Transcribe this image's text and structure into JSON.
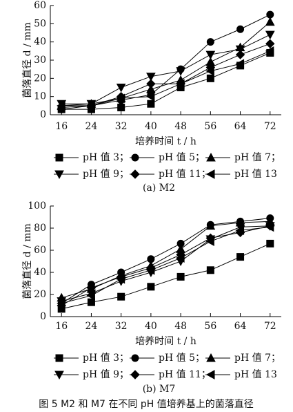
{
  "chart_data": [
    {
      "type": "line",
      "subtitle": "(a)  M2",
      "x_label": "培养时间 t / h",
      "y_label": "菌落直径 d / mm",
      "x": [
        16,
        24,
        32,
        40,
        48,
        56,
        64,
        72
      ],
      "xlim": [
        13,
        75
      ],
      "xticks": [
        16,
        24,
        32,
        40,
        48,
        56,
        64,
        72
      ],
      "ylim": [
        0,
        60
      ],
      "yticks": [
        0,
        10,
        20,
        30,
        40,
        50,
        60
      ],
      "series": [
        {
          "name": "pH 值 3；",
          "color": "#000000",
          "marker": "square",
          "values": [
            3,
            3,
            4,
            6,
            15,
            20,
            27,
            34
          ]
        },
        {
          "name": "pH 值 5；",
          "color": "#000000",
          "marker": "circle",
          "values": [
            4,
            5,
            8,
            11,
            25,
            40,
            47,
            55
          ]
        },
        {
          "name": "pH 值 7；",
          "color": "#000000",
          "marker": "triangle-up",
          "values": [
            5,
            6,
            9,
            14,
            19,
            29,
            37,
            51
          ]
        },
        {
          "name": "pH 值 9；",
          "color": "#000000",
          "marker": "triangle-down",
          "values": [
            6,
            6,
            15,
            21,
            24,
            33,
            36,
            44
          ]
        },
        {
          "name": "pH 值 11；",
          "color": "#000000",
          "marker": "diamond",
          "values": [
            3,
            5,
            10,
            17,
            17,
            26,
            33,
            39
          ]
        },
        {
          "name": "pH 值 13",
          "color": "#000000",
          "marker": "triangle-left",
          "values": [
            5,
            5,
            9,
            10,
            17,
            24,
            28,
            35
          ]
        }
      ]
    },
    {
      "type": "line",
      "subtitle": "(b)  M7",
      "x_label": "培养时间 t / h",
      "y_label": "菌落直径 d / mm",
      "x": [
        16,
        24,
        32,
        40,
        48,
        56,
        64,
        72
      ],
      "xlim": [
        13,
        75
      ],
      "xticks": [
        16,
        24,
        32,
        40,
        48,
        56,
        64,
        72
      ],
      "ylim": [
        0,
        100
      ],
      "yticks": [
        0,
        20,
        40,
        60,
        80,
        100
      ],
      "series": [
        {
          "name": "pH 值 3；",
          "color": "#000000",
          "marker": "square",
          "values": [
            7,
            13,
            18,
            27,
            36,
            42,
            54,
            66
          ]
        },
        {
          "name": "pH 值 5；",
          "color": "#000000",
          "marker": "circle",
          "values": [
            12,
            29,
            40,
            52,
            66,
            83,
            86,
            89
          ]
        },
        {
          "name": "pH 值 7；",
          "color": "#000000",
          "marker": "triangle-up",
          "values": [
            17,
            25,
            37,
            46,
            61,
            82,
            85,
            86
          ]
        },
        {
          "name": "pH 值 9；",
          "color": "#000000",
          "marker": "triangle-down",
          "values": [
            14,
            21,
            32,
            40,
            50,
            70,
            81,
            82
          ]
        },
        {
          "name": "pH 值 11；",
          "color": "#000000",
          "marker": "diamond",
          "values": [
            10,
            26,
            36,
            44,
            56,
            71,
            76,
            82
          ]
        },
        {
          "name": "pH 值 13",
          "color": "#000000",
          "marker": "triangle-left",
          "values": [
            12,
            19,
            34,
            42,
            53,
            68,
            78,
            81
          ]
        }
      ]
    }
  ],
  "caption": "图 5   M2 和 M7 在不同 pH 值培养基上的菌落直径"
}
